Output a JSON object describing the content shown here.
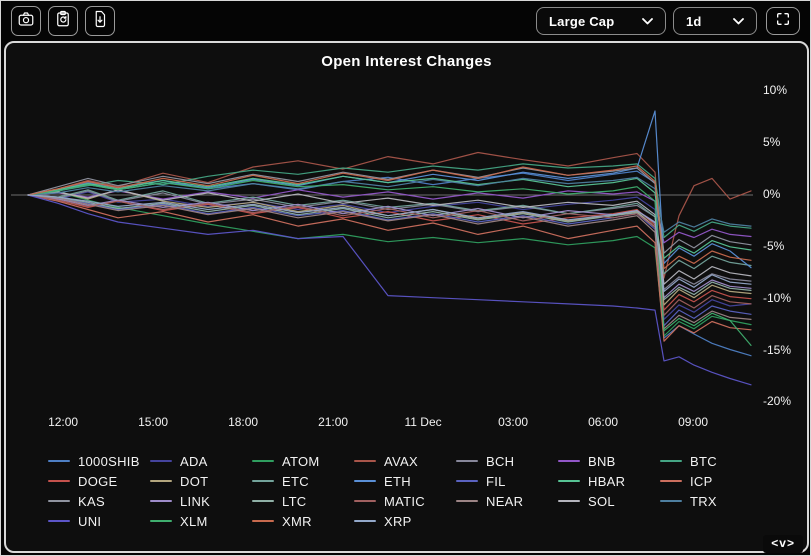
{
  "toolbar": {
    "screenshot_button": {
      "icon": "camera-icon"
    },
    "copy_button": {
      "icon": "clipboard-icon"
    },
    "export_button": {
      "icon": "file-download-icon"
    },
    "category_select": {
      "value": "Large Cap"
    },
    "timeframe_select": {
      "value": "1d"
    },
    "fullscreen_button": {
      "icon": "fullscreen-icon"
    }
  },
  "pager": {
    "label": "<v>"
  },
  "chart_data": {
    "type": "line",
    "title": "Open Interest Changes",
    "xlabel": "",
    "ylabel": "",
    "ylim": [
      -20,
      10
    ],
    "grid": "zero-line-only",
    "legend_position": "bottom",
    "y_ticks": [
      {
        "v": 10,
        "label": "10%"
      },
      {
        "v": 5,
        "label": "5%"
      },
      {
        "v": 0,
        "label": "0%"
      },
      {
        "v": -5,
        "label": "-5%"
      },
      {
        "v": -10,
        "label": "-10%"
      },
      {
        "v": -15,
        "label": "-15%"
      },
      {
        "v": -20,
        "label": "-20%"
      }
    ],
    "x_ticks": [
      {
        "t": 1.17,
        "label": "12:00"
      },
      {
        "t": 4.17,
        "label": "15:00"
      },
      {
        "t": 7.17,
        "label": "18:00"
      },
      {
        "t": 10.17,
        "label": "21:00"
      },
      {
        "t": 13.17,
        "label": "11 Dec"
      },
      {
        "t": 16.17,
        "label": "03:00"
      },
      {
        "t": 19.17,
        "label": "06:00"
      },
      {
        "t": 22.17,
        "label": "09:00"
      }
    ],
    "x_hours": [
      0,
      1,
      2,
      3,
      4.5,
      6,
      7.5,
      9,
      10.5,
      12,
      13.5,
      15,
      16.5,
      18,
      19.5,
      20.3,
      20.9,
      21.2,
      21.7,
      22.2,
      22.8,
      23.4,
      24.1
    ],
    "series": [
      {
        "name": "1000SHIB",
        "color": "#4e7fc4",
        "values": [
          0,
          0.5,
          1.2,
          0.7,
          1.4,
          0.6,
          1.1,
          0.5,
          1.3,
          1.7,
          1.0,
          1.6,
          2.1,
          1.4,
          2.0,
          2.3,
          1.2,
          -13.8,
          -12.6,
          -13.4,
          -14.3,
          -14.9,
          -15.5
        ]
      },
      {
        "name": "ADA",
        "color": "#45449e",
        "values": [
          0,
          -0.4,
          0.3,
          -0.7,
          -0.4,
          -1.1,
          -0.7,
          -1.4,
          -0.9,
          -1.7,
          -1.1,
          -0.7,
          -1.4,
          -0.9,
          -0.5,
          -0.2,
          -1.4,
          -12.0,
          -10.6,
          -11.3,
          -10.1,
          -10.7,
          -10.5
        ]
      },
      {
        "name": "ATOM",
        "color": "#2f9e5f",
        "values": [
          0,
          0.3,
          -0.5,
          -1.2,
          -2.0,
          -2.8,
          -3.5,
          -4.2,
          -3.8,
          -4.5,
          -4.1,
          -4.6,
          -4.2,
          -4.8,
          -4.4,
          -4.0,
          -5.1,
          -13.6,
          -12.2,
          -12.9,
          -11.7,
          -12.1,
          -12.5
        ]
      },
      {
        "name": "AVAX",
        "color": "#a8554a",
        "values": [
          0,
          0.6,
          1.4,
          0.8,
          2.1,
          1.2,
          2.7,
          3.3,
          2.5,
          3.7,
          3.0,
          4.1,
          3.4,
          2.8,
          3.6,
          4.0,
          2.2,
          -8.0,
          -2.0,
          0.9,
          1.6,
          -0.4,
          0.4
        ]
      },
      {
        "name": "BCH",
        "color": "#87879a",
        "values": [
          0,
          -0.3,
          0.4,
          -0.6,
          0.2,
          -0.9,
          -0.4,
          -1.2,
          -0.6,
          -1.4,
          -0.9,
          -1.6,
          -1.1,
          -1.8,
          -1.3,
          -1.0,
          -2.1,
          -9.1,
          -7.9,
          -8.6,
          -7.6,
          -8.1,
          -8.3
        ]
      },
      {
        "name": "BNB",
        "color": "#9257c8",
        "values": [
          0,
          0.2,
          -0.2,
          0.4,
          -0.4,
          0.3,
          -0.3,
          0.5,
          -0.2,
          0.3,
          -0.4,
          0.2,
          -0.3,
          0.4,
          0.1,
          0.3,
          -0.6,
          -4.6,
          -3.6,
          -4.1,
          -3.3,
          -3.8,
          -4.0
        ]
      },
      {
        "name": "BTC",
        "color": "#45a584",
        "values": [
          0,
          0.4,
          0.9,
          1.4,
          1.0,
          1.8,
          2.4,
          2.0,
          2.6,
          2.2,
          2.8,
          2.4,
          3.0,
          2.6,
          2.8,
          3.0,
          1.6,
          -4.1,
          -2.9,
          -3.5,
          -2.6,
          -3.0,
          -3.2
        ]
      },
      {
        "name": "DOGE",
        "color": "#c5524d",
        "values": [
          0,
          -0.5,
          -1.2,
          -0.6,
          -1.5,
          -0.9,
          -1.8,
          -1.2,
          -2.2,
          -1.6,
          -2.5,
          -1.9,
          -2.8,
          -2.2,
          -1.8,
          -1.4,
          -2.9,
          -11.1,
          -9.6,
          -10.3,
          -9.2,
          -9.8,
          -10.0
        ]
      },
      {
        "name": "DOT",
        "color": "#b3a67e",
        "values": [
          0,
          0.3,
          -0.4,
          0.5,
          -0.6,
          -1.2,
          -0.7,
          -1.6,
          -1.0,
          -2.0,
          -1.4,
          -2.3,
          -1.7,
          -2.5,
          -2.0,
          -1.6,
          -3.1,
          -10.6,
          -9.1,
          -9.9,
          -8.7,
          -9.3,
          -9.5
        ]
      },
      {
        "name": "ETC",
        "color": "#73a39b",
        "values": [
          0,
          -0.2,
          0.5,
          -0.5,
          0.4,
          -0.8,
          -0.2,
          -1.0,
          -0.5,
          -1.2,
          -0.8,
          -1.5,
          -1.0,
          -1.8,
          -1.2,
          -0.8,
          -2.1,
          -7.6,
          -6.3,
          -7.1,
          -5.9,
          -6.5,
          -6.8
        ]
      },
      {
        "name": "ETH",
        "color": "#5a8fd6",
        "values": [
          0,
          0.4,
          1.0,
          0.5,
          1.2,
          0.7,
          1.5,
          0.9,
          1.8,
          1.2,
          2.0,
          1.4,
          2.2,
          1.6,
          2.1,
          2.6,
          8.1,
          -6.6,
          -5.1,
          -5.9,
          -4.7,
          -5.4,
          -7.0
        ]
      },
      {
        "name": "FIL",
        "color": "#5a62c0",
        "values": [
          0,
          -0.3,
          -0.8,
          -1.4,
          -0.9,
          -1.8,
          -1.2,
          -2.0,
          -1.5,
          -2.4,
          -1.8,
          -2.6,
          -2.0,
          -2.8,
          -2.2,
          -1.8,
          -3.3,
          -12.6,
          -11.1,
          -11.9,
          -10.7,
          -11.2,
          -11.5
        ]
      },
      {
        "name": "HBAR",
        "color": "#57c394",
        "values": [
          0,
          0.5,
          1.1,
          0.6,
          1.4,
          0.8,
          1.6,
          1.0,
          1.8,
          1.2,
          1.6,
          1.0,
          1.5,
          0.8,
          1.2,
          1.6,
          0.2,
          -6.1,
          -4.9,
          -5.6,
          -4.4,
          -5.0,
          -5.3
        ]
      },
      {
        "name": "ICP",
        "color": "#cc6f5e",
        "values": [
          0,
          -0.6,
          -1.4,
          -2.2,
          -1.6,
          -2.6,
          -1.9,
          -3.0,
          -2.3,
          -3.4,
          -2.7,
          -3.8,
          -3.0,
          -4.2,
          -3.4,
          -3.0,
          -4.6,
          -14.1,
          -12.6,
          -13.3,
          -12.2,
          -12.8,
          -13.0
        ]
      },
      {
        "name": "KAS",
        "color": "#9094a0",
        "values": [
          0,
          0.8,
          1.6,
          0.9,
          1.8,
          1.1,
          2.0,
          1.3,
          2.2,
          1.5,
          2.4,
          1.7,
          2.6,
          1.9,
          2.3,
          2.6,
          1.1,
          -5.6,
          -4.3,
          -5.1,
          -3.9,
          -4.5,
          -4.8
        ]
      },
      {
        "name": "LINK",
        "color": "#9e8cc9",
        "values": [
          0,
          -0.4,
          -1.0,
          -0.5,
          -1.2,
          -0.7,
          -1.5,
          -0.9,
          -1.8,
          -1.1,
          -2.0,
          -1.3,
          -2.2,
          -1.5,
          -1.9,
          -1.5,
          -2.6,
          -9.9,
          -8.6,
          -9.3,
          -8.2,
          -8.8,
          -9.0
        ]
      },
      {
        "name": "LTC",
        "color": "#8fb0a6",
        "values": [
          0,
          -0.2,
          -0.7,
          -1.3,
          -0.8,
          -1.6,
          -1.0,
          -1.9,
          -1.3,
          -2.2,
          -1.6,
          -2.4,
          -1.8,
          -2.6,
          -2.0,
          -1.7,
          -3.1,
          -10.1,
          -8.9,
          -9.6,
          -8.4,
          -9.0,
          -9.2
        ]
      },
      {
        "name": "MATIC",
        "color": "#a06060",
        "values": [
          0,
          -0.5,
          -1.1,
          -0.6,
          -1.4,
          -0.8,
          -1.7,
          -1.1,
          -2.0,
          -1.3,
          -2.2,
          -1.5,
          -2.5,
          -1.8,
          -2.2,
          -1.8,
          -3.1,
          -11.6,
          -10.1,
          -10.9,
          -9.7,
          -10.3,
          -10.5
        ]
      },
      {
        "name": "NEAR",
        "color": "#9c8485",
        "values": [
          0,
          -0.3,
          -0.9,
          -1.5,
          -1.0,
          -1.9,
          -1.3,
          -2.2,
          -1.6,
          -2.5,
          -1.9,
          -2.8,
          -2.1,
          -3.0,
          -2.4,
          -2.0,
          -3.6,
          -12.9,
          -11.6,
          -12.3,
          -11.2,
          -11.8,
          -12.0
        ]
      },
      {
        "name": "SOL",
        "color": "#b5b5bd",
        "values": [
          0,
          0.3,
          -0.3,
          0.5,
          -0.5,
          0.2,
          -0.6,
          0.1,
          -0.8,
          -0.3,
          -1.0,
          -0.5,
          -1.2,
          -0.7,
          -1.0,
          -0.6,
          -1.9,
          -8.6,
          -7.3,
          -8.1,
          -6.9,
          -7.5,
          -7.8
        ]
      },
      {
        "name": "TRX",
        "color": "#4e7fa0",
        "values": [
          0,
          0.2,
          0.7,
          0.3,
          0.9,
          0.4,
          1.1,
          0.6,
          1.3,
          0.8,
          1.5,
          0.9,
          1.6,
          1.1,
          1.4,
          1.7,
          0.6,
          -3.6,
          -2.6,
          -3.1,
          -2.3,
          -2.8,
          -3.0
        ]
      },
      {
        "name": "UNI",
        "color": "#5c55c8",
        "values": [
          0,
          -0.8,
          -1.8,
          -2.6,
          -3.2,
          -3.8,
          -3.4,
          -4.2,
          -4.0,
          -9.7,
          -9.9,
          -10.1,
          -10.3,
          -10.5,
          -10.7,
          -10.9,
          -11.1,
          -16.0,
          -15.6,
          -16.4,
          -17.1,
          -17.7,
          -18.3
        ]
      },
      {
        "name": "XLM",
        "color": "#3fae6e",
        "values": [
          0,
          0.4,
          1.0,
          0.5,
          1.2,
          0.6,
          1.4,
          0.8,
          1.0,
          0.5,
          0.8,
          0.3,
          0.6,
          0.1,
          0.4,
          0.8,
          -0.6,
          -13.1,
          -11.9,
          -12.6,
          -11.4,
          -12.1,
          -14.5
        ]
      },
      {
        "name": "XMR",
        "color": "#c76a4e",
        "values": [
          0,
          0.6,
          1.3,
          0.7,
          1.6,
          0.9,
          1.9,
          1.1,
          2.1,
          1.4,
          2.4,
          1.6,
          2.7,
          1.9,
          2.4,
          2.8,
          1.3,
          -7.1,
          -5.9,
          -6.6,
          -5.4,
          -6.0,
          -6.3
        ]
      },
      {
        "name": "XRP",
        "color": "#93a8c9",
        "values": [
          0,
          -0.2,
          -0.6,
          -1.1,
          -0.7,
          -1.4,
          -0.9,
          -1.7,
          -1.2,
          -2.0,
          -1.4,
          -2.2,
          -1.6,
          -2.4,
          -1.9,
          -1.5,
          -2.7,
          -9.3,
          -8.1,
          -8.9,
          -7.7,
          -8.4,
          -8.6
        ]
      }
    ]
  }
}
